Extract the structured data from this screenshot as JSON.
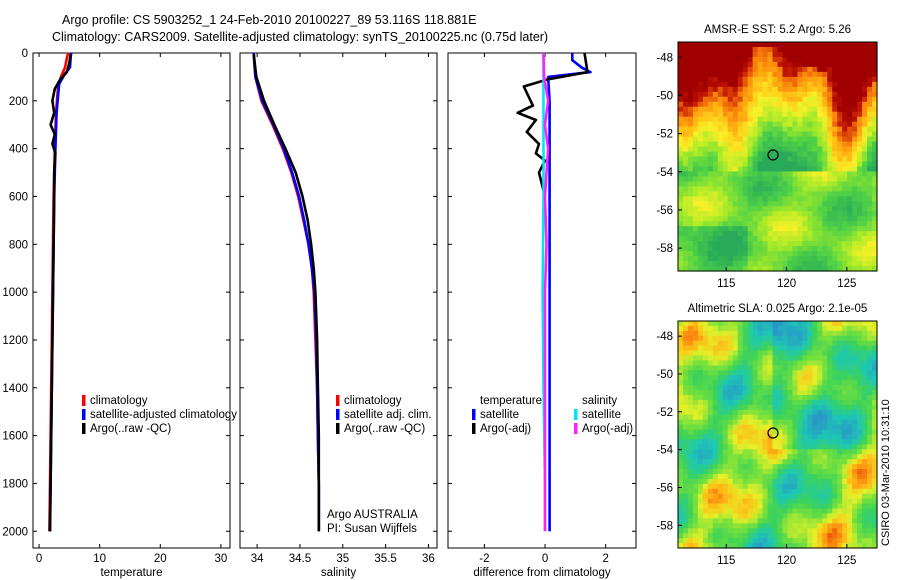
{
  "title_line1": "Argo profile: CS 5903252_1 24-Feb-2010 20100227_89 53.116S 118.881E",
  "title_line2": "Climatology: CARS2009. Satellite-adjusted climatology: synTS_20100225.nc (0.75d later)",
  "side_credit": "CSIRO 03-Mar-2010 10:31:10",
  "colors": {
    "red": "#ff0000",
    "blue": "#0000ff",
    "black": "#000000",
    "cyan": "#00e5ee",
    "magenta": "#ff22ff"
  },
  "chart_data": [
    {
      "type": "line",
      "xlabel": "temperature",
      "xlim": [
        -1,
        31.5
      ],
      "ylim": [
        2070,
        0
      ],
      "xticks": [
        0,
        10,
        20,
        30
      ],
      "yticks": [
        0,
        200,
        400,
        600,
        800,
        1000,
        1200,
        1400,
        1600,
        1800,
        2000
      ],
      "legend": [
        "climatology",
        "satellite-adjusted climatology",
        "Argo(..raw -QC)"
      ],
      "series": [
        {
          "name": "climatology",
          "color": "#ff0000",
          "points": [
            [
              4.8,
              0
            ],
            [
              4.6,
              20
            ],
            [
              4.3,
              60
            ],
            [
              3.6,
              100
            ],
            [
              3.1,
              150
            ],
            [
              2.8,
              250
            ],
            [
              2.6,
              400
            ],
            [
              2.4,
              600
            ],
            [
              2.3,
              800
            ],
            [
              2.2,
              1000
            ],
            [
              2.1,
              1200
            ],
            [
              2.0,
              1400
            ],
            [
              1.9,
              1600
            ],
            [
              1.8,
              1800
            ],
            [
              1.7,
              2000
            ]
          ]
        },
        {
          "name": "satellite-adjusted climatology",
          "color": "#0000ff",
          "points": [
            [
              5.3,
              0
            ],
            [
              5.2,
              20
            ],
            [
              5.1,
              60
            ],
            [
              4.2,
              90
            ],
            [
              3.3,
              130
            ],
            [
              2.9,
              250
            ],
            [
              2.7,
              400
            ],
            [
              2.5,
              600
            ],
            [
              2.4,
              800
            ],
            [
              2.3,
              1000
            ],
            [
              2.2,
              1200
            ],
            [
              2.1,
              1400
            ],
            [
              2.0,
              1600
            ],
            [
              1.9,
              1800
            ],
            [
              1.8,
              2000
            ]
          ]
        },
        {
          "name": "Argo(..raw -QC)",
          "color": "#000000",
          "points": [
            [
              5.2,
              5
            ],
            [
              5.0,
              40
            ],
            [
              4.6,
              80
            ],
            [
              3.5,
              110
            ],
            [
              2.6,
              150
            ],
            [
              2.2,
              200
            ],
            [
              2.5,
              250
            ],
            [
              1.9,
              300
            ],
            [
              2.6,
              340
            ],
            [
              2.2,
              380
            ],
            [
              2.7,
              420
            ],
            [
              2.5,
              500
            ],
            [
              2.5,
              600
            ],
            [
              2.4,
              800
            ],
            [
              2.3,
              1000
            ],
            [
              2.2,
              1200
            ],
            [
              2.1,
              1400
            ],
            [
              2.0,
              1600
            ],
            [
              1.9,
              1800
            ],
            [
              1.8,
              2000
            ]
          ]
        }
      ]
    },
    {
      "type": "line",
      "xlabel": "salinity",
      "xlim": [
        33.8,
        36.1
      ],
      "ylim": [
        2070,
        0
      ],
      "xticks": [
        34,
        34.5,
        35,
        35.5,
        36
      ],
      "legend": [
        "climatology",
        "satellite adj. clim.",
        "Argo(..raw -QC)"
      ],
      "annotation": [
        "Argo AUSTRALIA",
        "PI: Susan Wijffels"
      ],
      "series": [
        {
          "name": "climatology",
          "color": "#ff0000",
          "points": [
            [
              33.96,
              0
            ],
            [
              33.98,
              100
            ],
            [
              34.05,
              200
            ],
            [
              34.18,
              300
            ],
            [
              34.3,
              400
            ],
            [
              34.4,
              500
            ],
            [
              34.48,
              600
            ],
            [
              34.54,
              700
            ],
            [
              34.6,
              800
            ],
            [
              34.64,
              900
            ],
            [
              34.66,
              1000
            ],
            [
              34.68,
              1200
            ],
            [
              34.7,
              1400
            ],
            [
              34.71,
              1600
            ],
            [
              34.72,
              1800
            ],
            [
              34.72,
              2000
            ]
          ]
        },
        {
          "name": "satellite adj. clim.",
          "color": "#0000ff",
          "points": [
            [
              33.96,
              0
            ],
            [
              33.98,
              100
            ],
            [
              34.06,
              200
            ],
            [
              34.19,
              300
            ],
            [
              34.31,
              400
            ],
            [
              34.41,
              500
            ],
            [
              34.49,
              600
            ],
            [
              34.55,
              700
            ],
            [
              34.6,
              800
            ],
            [
              34.64,
              900
            ],
            [
              34.67,
              1000
            ],
            [
              34.69,
              1200
            ],
            [
              34.7,
              1400
            ],
            [
              34.71,
              1600
            ],
            [
              34.72,
              1800
            ],
            [
              34.72,
              2000
            ]
          ]
        },
        {
          "name": "Argo(..raw -QC)",
          "color": "#000000",
          "points": [
            [
              33.96,
              5
            ],
            [
              33.99,
              100
            ],
            [
              34.08,
              200
            ],
            [
              34.2,
              300
            ],
            [
              34.33,
              400
            ],
            [
              34.45,
              500
            ],
            [
              34.53,
              600
            ],
            [
              34.59,
              700
            ],
            [
              34.63,
              800
            ],
            [
              34.66,
              900
            ],
            [
              34.68,
              1000
            ],
            [
              34.7,
              1200
            ],
            [
              34.71,
              1400
            ],
            [
              34.72,
              1600
            ],
            [
              34.72,
              1800
            ],
            [
              34.72,
              2000
            ]
          ]
        }
      ]
    },
    {
      "type": "line",
      "xlabel": "difference from climatology",
      "xlim": [
        -3.2,
        3.0
      ],
      "ylim": [
        2070,
        0
      ],
      "xticks": [
        -2,
        0,
        2
      ],
      "legend_header_temperature": "temperature",
      "legend_header_salinity": "salinity",
      "legend": [
        "satellite",
        "Argo(-adj)",
        "satellite",
        "Argo(-adj)"
      ],
      "series": [
        {
          "name": "temperature satellite",
          "color": "#0000ff",
          "points": [
            [
              0.9,
              0
            ],
            [
              0.9,
              30
            ],
            [
              1.2,
              60
            ],
            [
              1.5,
              80
            ],
            [
              0.1,
              100
            ],
            [
              0.15,
              200
            ],
            [
              0.15,
              400
            ],
            [
              0.15,
              800
            ],
            [
              0.15,
              1200
            ],
            [
              0.15,
              1600
            ],
            [
              0.15,
              2000
            ]
          ]
        },
        {
          "name": "temperature Argo(-adj)",
          "color": "#000000",
          "points": [
            [
              1.3,
              0
            ],
            [
              1.4,
              80
            ],
            [
              0.1,
              110
            ],
            [
              -0.7,
              140
            ],
            [
              -0.4,
              220
            ],
            [
              -0.9,
              250
            ],
            [
              -0.3,
              280
            ],
            [
              -0.6,
              330
            ],
            [
              -0.2,
              380
            ],
            [
              -0.3,
              420
            ],
            [
              0.0,
              450
            ],
            [
              -0.2,
              500
            ],
            [
              0.0,
              600
            ]
          ]
        },
        {
          "name": "salinity satellite",
          "color": "#00e5ee",
          "points": [
            [
              -0.05,
              0
            ],
            [
              -0.05,
              100
            ],
            [
              -0.05,
              200
            ],
            [
              -0.05,
              600
            ],
            [
              -0.08,
              1000
            ],
            [
              -0.05,
              1400
            ],
            [
              0.0,
              1800
            ],
            [
              0.0,
              2000
            ]
          ]
        },
        {
          "name": "salinity Argo(-adj)",
          "color": "#ff22ff",
          "points": [
            [
              -0.05,
              0
            ],
            [
              -0.03,
              100
            ],
            [
              0.1,
              200
            ],
            [
              0.0,
              300
            ],
            [
              0.1,
              400
            ],
            [
              0.05,
              500
            ],
            [
              0.0,
              600
            ],
            [
              0.05,
              800
            ],
            [
              0.0,
              1000
            ],
            [
              0.0,
              1200
            ],
            [
              0.0,
              1600
            ],
            [
              0.0,
              2000
            ]
          ]
        }
      ]
    },
    {
      "type": "heatmap",
      "title": "AMSR-E SST: 5.2 Argo: 5.26",
      "xlim": [
        111,
        127.5
      ],
      "ylim": [
        -59.2,
        -47.2
      ],
      "xticks": [
        115,
        120,
        125
      ],
      "yticks": [
        -48,
        -50,
        -52,
        -54,
        -56,
        -58
      ],
      "marker": {
        "lon": 118.88,
        "lat": -53.12
      }
    },
    {
      "type": "heatmap",
      "title": "Altimetric SLA: 0.025 Argo: 2.1e-05",
      "xlim": [
        111,
        127.5
      ],
      "ylim": [
        -59.2,
        -47.2
      ],
      "xticks": [
        115,
        120,
        125
      ],
      "yticks": [
        -48,
        -50,
        -52,
        -54,
        -56,
        -58
      ],
      "marker": {
        "lon": 118.88,
        "lat": -53.12
      }
    }
  ]
}
